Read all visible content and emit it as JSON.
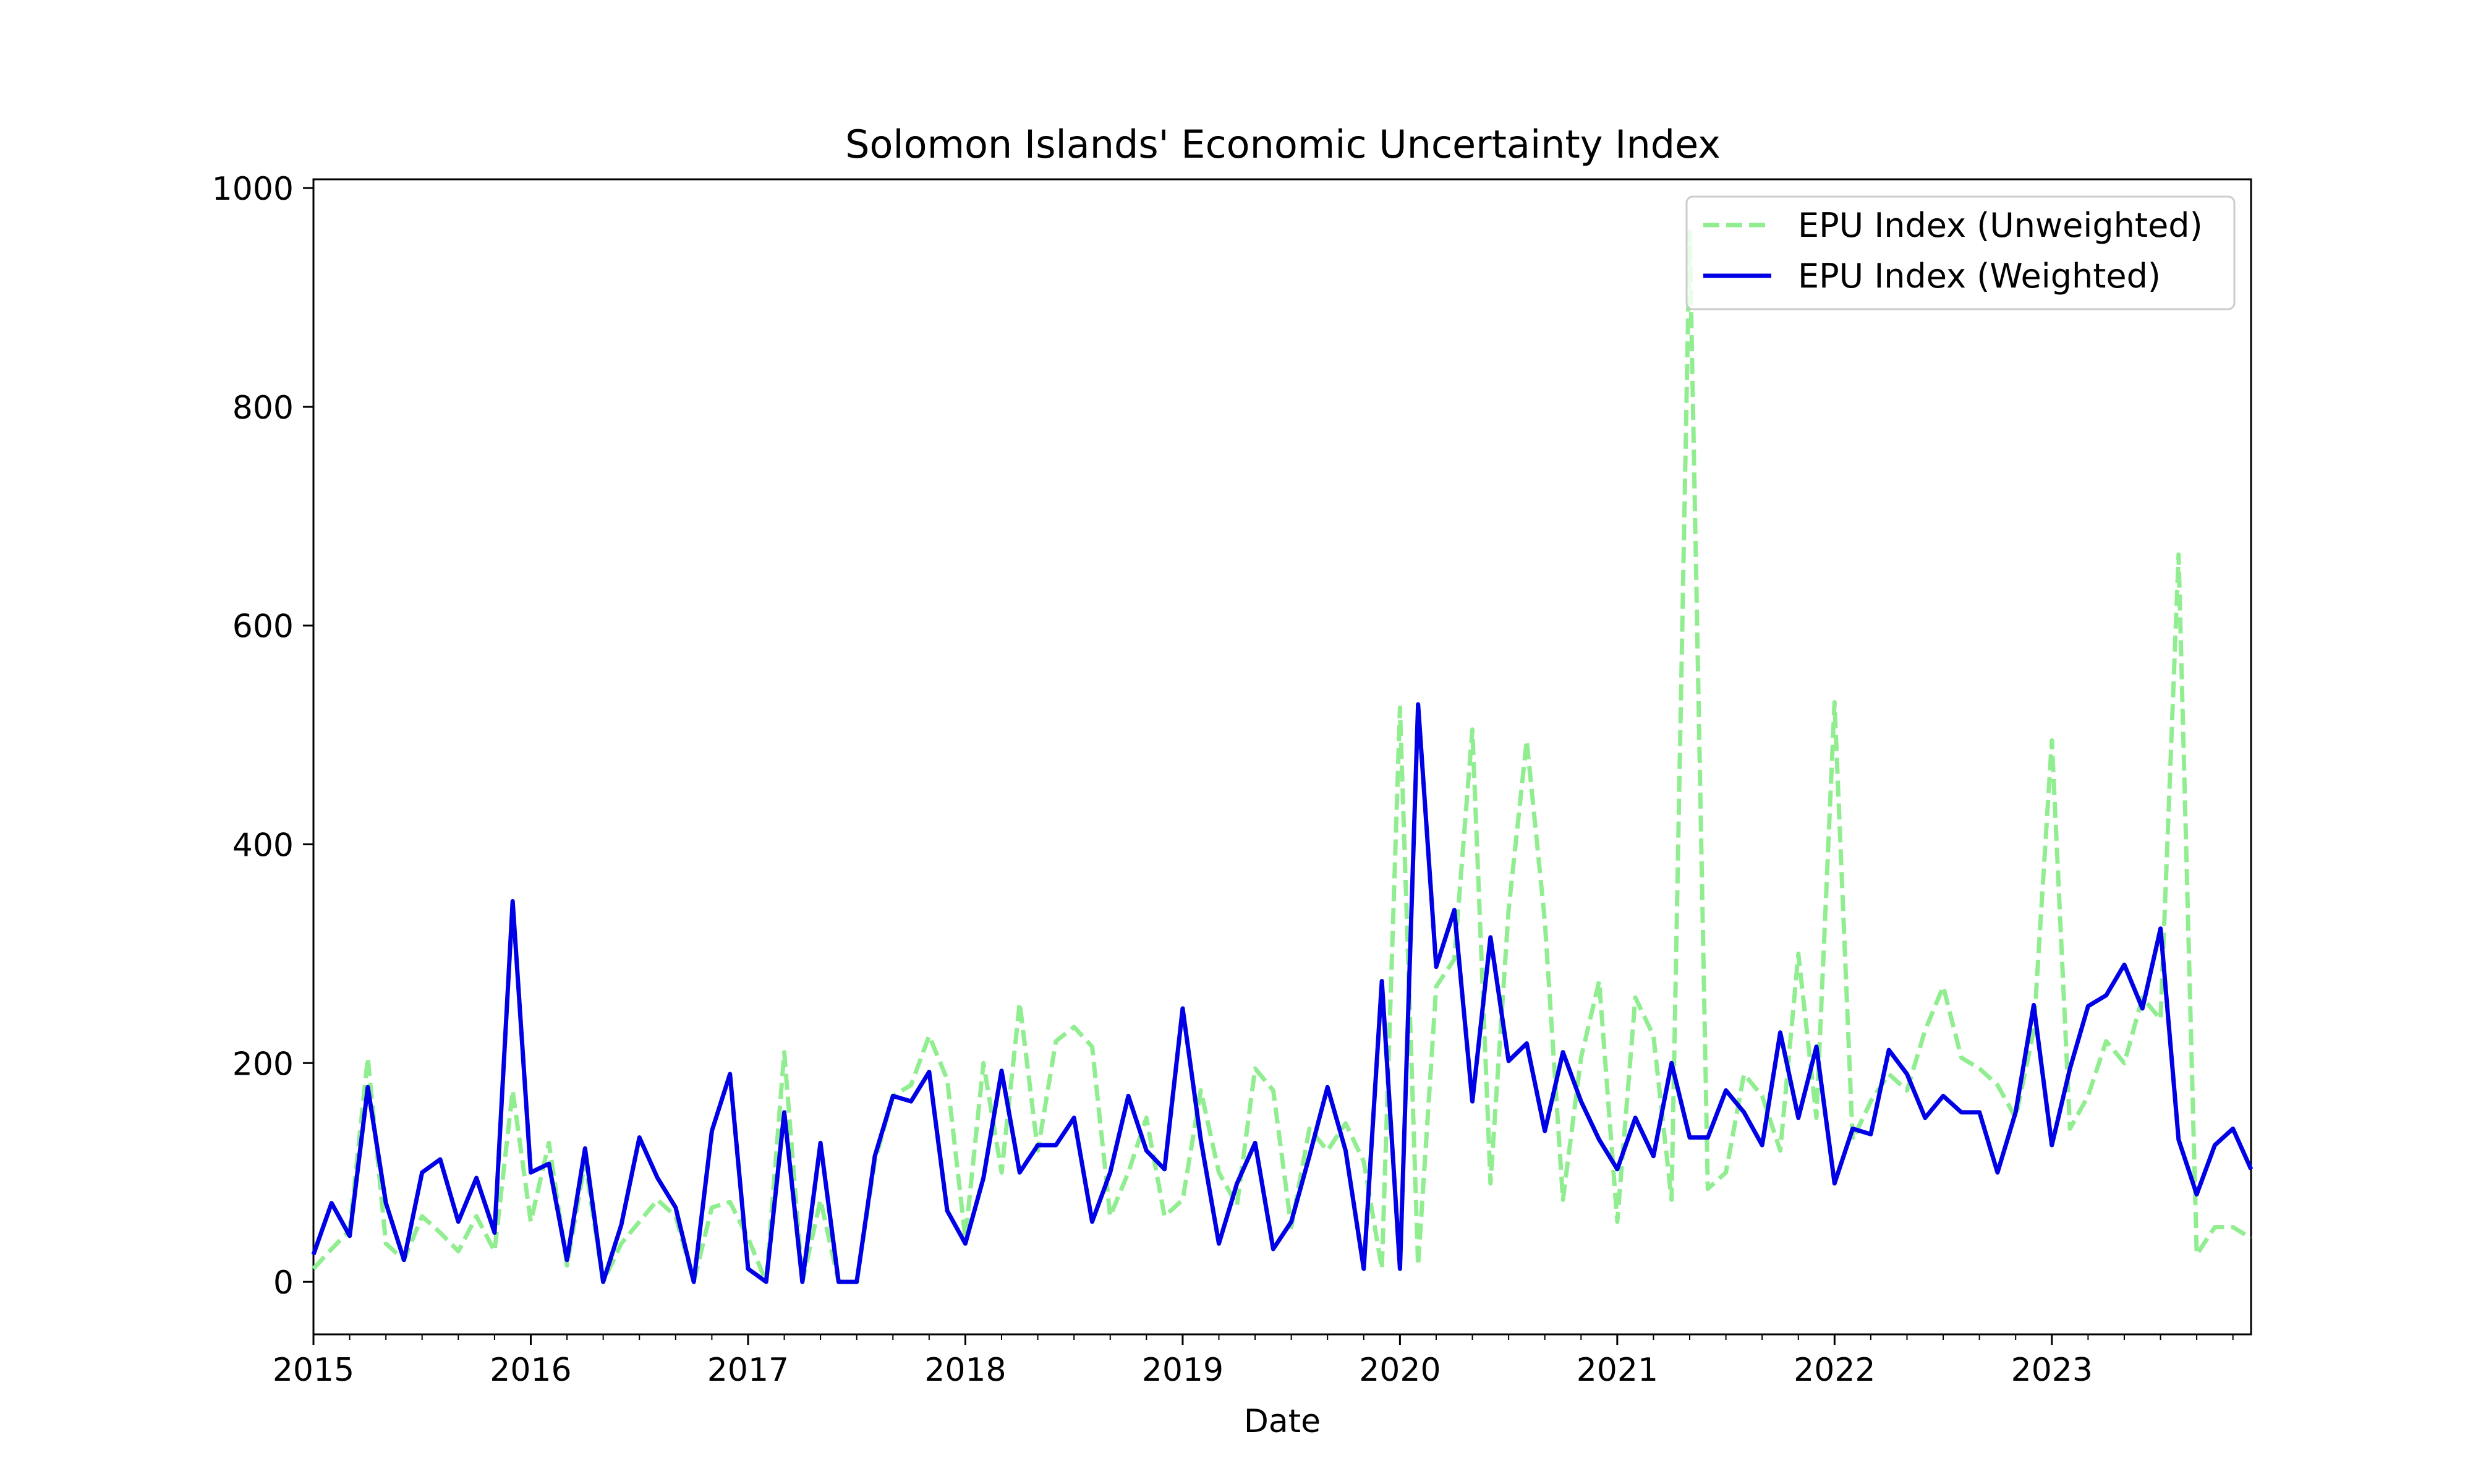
{
  "chart_data": {
    "type": "line",
    "title": "Solomon Islands' Economic Uncertainty Index",
    "xlabel": "Date",
    "ylabel": "",
    "x_start": "2015-01",
    "x_frequency": "monthly",
    "xlim": [
      "2015-01",
      "2023-12"
    ],
    "ylim": [
      -48,
      1008
    ],
    "x_ticks": [
      "2015",
      "2016",
      "2017",
      "2018",
      "2019",
      "2020",
      "2021",
      "2022",
      "2023"
    ],
    "y_ticks": [
      0,
      200,
      400,
      600,
      800,
      1000
    ],
    "grid": false,
    "legend": "top-right",
    "series": [
      {
        "name": "EPU Index (Unweighted)",
        "style": "dashed",
        "color": "#90ee90",
        "values": [
          12,
          30,
          47,
          205,
          35,
          20,
          60,
          45,
          28,
          60,
          28,
          175,
          55,
          127,
          15,
          110,
          0,
          35,
          55,
          75,
          60,
          0,
          68,
          73,
          40,
          0,
          210,
          0,
          75,
          0,
          0,
          110,
          170,
          180,
          225,
          185,
          40,
          200,
          100,
          255,
          120,
          220,
          233,
          215,
          60,
          100,
          150,
          60,
          75,
          175,
          100,
          70,
          195,
          175,
          50,
          140,
          120,
          145,
          110,
          12,
          525,
          15,
          270,
          295,
          505,
          90,
          340,
          495,
          330,
          75,
          205,
          275,
          55,
          260,
          225,
          75,
          960,
          85,
          100,
          190,
          170,
          120,
          300,
          150,
          530,
          130,
          165,
          190,
          175,
          230,
          270,
          205,
          195,
          180,
          150,
          230,
          495,
          140,
          170,
          220,
          200,
          260,
          240,
          665,
          25,
          50,
          50,
          40
        ]
      },
      {
        "name": "EPU Index (Weighted)",
        "style": "solid",
        "color": "#0000e6",
        "values": [
          25,
          72,
          42,
          178,
          72,
          20,
          100,
          112,
          55,
          95,
          45,
          348,
          100,
          108,
          20,
          122,
          0,
          52,
          132,
          95,
          68,
          0,
          138,
          190,
          12,
          0,
          155,
          0,
          127,
          0,
          0,
          115,
          170,
          165,
          192,
          65,
          35,
          95,
          193,
          100,
          125,
          125,
          150,
          55,
          100,
          170,
          120,
          103,
          250,
          130,
          35,
          90,
          127,
          30,
          55,
          115,
          178,
          120,
          12,
          275,
          12,
          528,
          288,
          340,
          165,
          315,
          202,
          218,
          138,
          210,
          165,
          130,
          103,
          150,
          115,
          200,
          132,
          132,
          175,
          155,
          125,
          228,
          150,
          215,
          90,
          140,
          135,
          212,
          190,
          150,
          170,
          155,
          155,
          100,
          155,
          253,
          125,
          195,
          252,
          262,
          290,
          250,
          323,
          130,
          80,
          125,
          140,
          103
        ]
      }
    ]
  }
}
